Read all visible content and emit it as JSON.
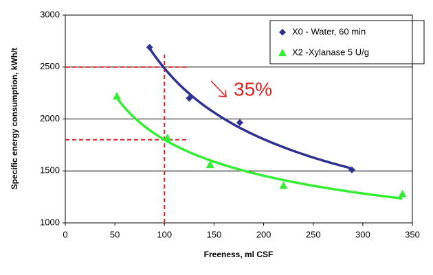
{
  "chart_data": {
    "type": "scatter",
    "xlabel": "Freeness, ml  CSF",
    "ylabel": "Specific energy consumption, kWh/t",
    "xlim": [
      0,
      350
    ],
    "xticks": [
      0,
      50,
      100,
      150,
      200,
      250,
      300,
      350
    ],
    "ylim": [
      1000,
      3000
    ],
    "yticks": [
      1000,
      1500,
      2000,
      2500,
      3000
    ],
    "grid": true,
    "legend": "upper right",
    "trendline": "power",
    "series": [
      {
        "name": "X0 - Water, 60 min",
        "color": "#2e3192",
        "marker": "diamond",
        "x": [
          85,
          125,
          176,
          289
        ],
        "values": [
          2690,
          2200,
          1965,
          1510
        ]
      },
      {
        "name": "X2 -Xylanase  5 U/g",
        "color": "#33ee33",
        "marker": "triangle",
        "x": [
          52,
          103,
          146,
          220,
          340
        ],
        "values": [
          2220,
          1820,
          1560,
          1360,
          1280
        ]
      }
    ],
    "reference_color": "#e02020",
    "hlines": [
      {
        "y": 2500,
        "xmax": 125
      },
      {
        "y": 1800,
        "xmax": 125
      }
    ],
    "vlines": [
      {
        "x": 100,
        "ymax": 2620
      }
    ],
    "annotation": "35%"
  }
}
